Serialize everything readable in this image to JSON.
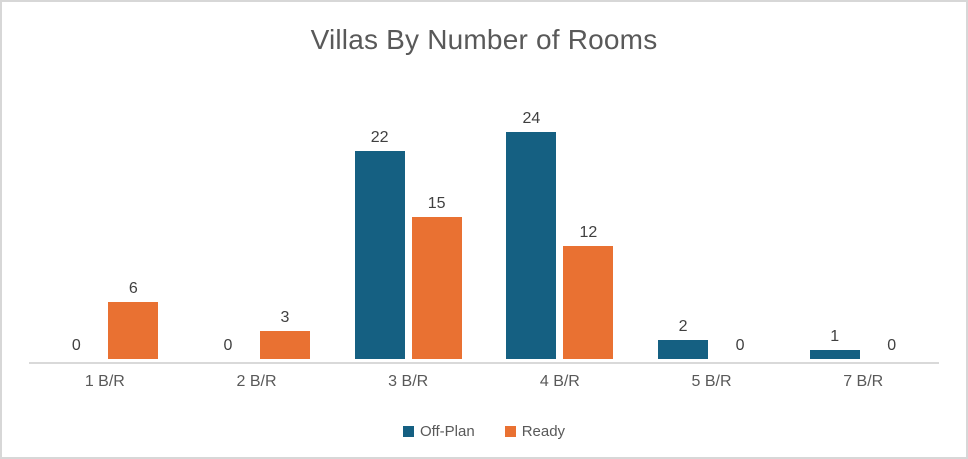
{
  "window": {
    "background": "#ffffff",
    "border_color": "#d7d7d7"
  },
  "chart_data": {
    "type": "bar",
    "title": "Villas By Number of Rooms",
    "categories": [
      "1 B/R",
      "2 B/R",
      "3 B/R",
      "4 B/R",
      "5 B/R",
      "7 B/R"
    ],
    "series": [
      {
        "name": "Off-Plan",
        "color": "#156082",
        "values": [
          0,
          0,
          22,
          24,
          2,
          1
        ]
      },
      {
        "name": "Ready",
        "color": "#E97132",
        "values": [
          6,
          3,
          15,
          12,
          0,
          0
        ]
      }
    ],
    "data_labels": true,
    "legend_position": "bottom",
    "gridlines": false,
    "y_axis_visible": false,
    "x_axis_line_color": "#d9d9d9",
    "ylim": [
      0,
      24
    ]
  },
  "style": {
    "title_color": "#595959",
    "data_label_color": "#404040",
    "axis_label_color": "#595959"
  }
}
